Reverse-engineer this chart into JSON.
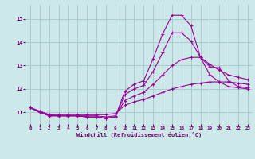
{
  "background_color": "#cce8e8",
  "grid_color": "#aacccc",
  "line_color": "#990099",
  "xlabel": "Windchill (Refroidissement éolien,°C)",
  "xlabel_color": "#660066",
  "tick_color": "#660066",
  "ylim": [
    10.5,
    15.6
  ],
  "xlim": [
    -0.5,
    23.5
  ],
  "yticks": [
    11,
    12,
    13,
    14,
    15
  ],
  "xticks": [
    0,
    1,
    2,
    3,
    4,
    5,
    6,
    7,
    8,
    9,
    10,
    11,
    12,
    13,
    14,
    15,
    16,
    17,
    18,
    19,
    20,
    21,
    22,
    23
  ],
  "series": [
    {
      "x": [
        0,
        1,
        2,
        3,
        4,
        5,
        6,
        7,
        8,
        9,
        10,
        11,
        12,
        13,
        14,
        15,
        16,
        17,
        18,
        19,
        20,
        21,
        22,
        23
      ],
      "y": [
        11.2,
        11.0,
        10.85,
        10.85,
        10.85,
        10.85,
        10.8,
        10.8,
        10.75,
        10.8,
        11.9,
        12.2,
        12.35,
        13.3,
        14.35,
        15.15,
        15.15,
        14.7,
        13.35,
        12.95,
        12.9,
        12.35,
        12.1,
        12.05
      ]
    },
    {
      "x": [
        0,
        1,
        2,
        3,
        4,
        5,
        6,
        7,
        8,
        9,
        10,
        11,
        12,
        13,
        14,
        15,
        16,
        17,
        18,
        19,
        20,
        21,
        22,
        23
      ],
      "y": [
        11.2,
        11.0,
        10.85,
        10.85,
        10.85,
        10.85,
        10.8,
        10.8,
        10.75,
        10.8,
        11.75,
        12.0,
        12.15,
        12.75,
        13.55,
        14.4,
        14.4,
        14.05,
        13.35,
        12.6,
        12.3,
        12.1,
        12.05,
        12.0
      ]
    },
    {
      "x": [
        0,
        1,
        2,
        3,
        4,
        5,
        6,
        7,
        8,
        9,
        10,
        11,
        12,
        13,
        14,
        15,
        16,
        17,
        18,
        19,
        20,
        21,
        22,
        23
      ],
      "y": [
        11.2,
        11.05,
        10.9,
        10.85,
        10.85,
        10.85,
        10.85,
        10.85,
        10.8,
        10.85,
        11.5,
        11.7,
        11.85,
        12.2,
        12.6,
        13.0,
        13.25,
        13.35,
        13.35,
        13.05,
        12.8,
        12.6,
        12.5,
        12.4
      ]
    },
    {
      "x": [
        0,
        1,
        2,
        3,
        4,
        5,
        6,
        7,
        8,
        9,
        10,
        11,
        12,
        13,
        14,
        15,
        16,
        17,
        18,
        19,
        20,
        21,
        22,
        23
      ],
      "y": [
        11.2,
        11.05,
        10.9,
        10.9,
        10.9,
        10.9,
        10.9,
        10.9,
        10.9,
        10.95,
        11.3,
        11.45,
        11.55,
        11.7,
        11.85,
        12.0,
        12.1,
        12.2,
        12.25,
        12.3,
        12.3,
        12.3,
        12.25,
        12.2
      ]
    }
  ]
}
